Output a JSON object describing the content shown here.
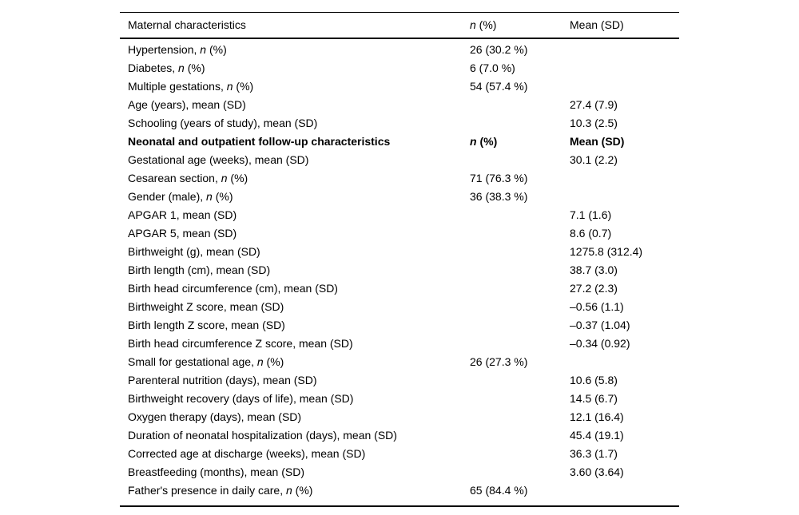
{
  "page": {
    "background_color": "#ffffff",
    "text_color": "#000000",
    "rule_color": "#000000"
  },
  "table": {
    "header": {
      "cells": [
        [
          {
            "text": "Maternal characteristics"
          }
        ],
        [
          {
            "text": "n",
            "italic": true
          },
          {
            "text": " (%)"
          }
        ],
        [
          {
            "text": "Mean (SD)"
          }
        ]
      ]
    },
    "rows": [
      {
        "bold": false,
        "cells": [
          [
            {
              "text": "Hypertension, "
            },
            {
              "text": "n",
              "italic": true
            },
            {
              "text": " (%)"
            }
          ],
          [
            {
              "text": "26 (30.2 %)"
            }
          ],
          []
        ]
      },
      {
        "bold": false,
        "cells": [
          [
            {
              "text": "Diabetes, "
            },
            {
              "text": "n",
              "italic": true
            },
            {
              "text": " (%)"
            }
          ],
          [
            {
              "text": "6 (7.0 %)"
            }
          ],
          []
        ]
      },
      {
        "bold": false,
        "cells": [
          [
            {
              "text": "Multiple gestations, "
            },
            {
              "text": "n",
              "italic": true
            },
            {
              "text": " (%)"
            }
          ],
          [
            {
              "text": "54 (57.4 %)"
            }
          ],
          []
        ]
      },
      {
        "bold": false,
        "cells": [
          [
            {
              "text": "Age (years), mean (SD)"
            }
          ],
          [],
          [
            {
              "text": "27.4 (7.9)"
            }
          ]
        ]
      },
      {
        "bold": false,
        "cells": [
          [
            {
              "text": "Schooling (years of study), mean (SD)"
            }
          ],
          [],
          [
            {
              "text": "10.3 (2.5)"
            }
          ]
        ]
      },
      {
        "bold": true,
        "cells": [
          [
            {
              "text": "Neonatal and outpatient follow-up characteristics",
              "bold": true
            }
          ],
          [
            {
              "text": "n",
              "italic": true
            },
            {
              "text": " (%"
            },
            {
              "text": ")",
              "bold": true
            }
          ],
          [
            {
              "text": "Mean (SD)",
              "bold": true
            }
          ]
        ]
      },
      {
        "bold": false,
        "cells": [
          [
            {
              "text": "Gestational age (weeks), mean (SD)"
            }
          ],
          [],
          [
            {
              "text": "30.1 (2.2)"
            }
          ]
        ]
      },
      {
        "bold": false,
        "cells": [
          [
            {
              "text": "Cesarean section, "
            },
            {
              "text": "n",
              "italic": true
            },
            {
              "text": " (%)"
            }
          ],
          [
            {
              "text": "71 (76.3 %)"
            }
          ],
          []
        ]
      },
      {
        "bold": false,
        "cells": [
          [
            {
              "text": "Gender (male), "
            },
            {
              "text": "n",
              "italic": true
            },
            {
              "text": " (%)"
            }
          ],
          [
            {
              "text": "36 (38.3 %)"
            }
          ],
          []
        ]
      },
      {
        "bold": false,
        "cells": [
          [
            {
              "text": "APGAR 1, mean (SD)"
            }
          ],
          [],
          [
            {
              "text": "7.1 (1.6)"
            }
          ]
        ]
      },
      {
        "bold": false,
        "cells": [
          [
            {
              "text": "APGAR 5, mean (SD)"
            }
          ],
          [],
          [
            {
              "text": "8.6 (0.7)"
            }
          ]
        ]
      },
      {
        "bold": false,
        "cells": [
          [
            {
              "text": "Birthweight (g), mean (SD)"
            }
          ],
          [],
          [
            {
              "text": "1275.8 (312.4)"
            }
          ]
        ]
      },
      {
        "bold": false,
        "cells": [
          [
            {
              "text": "Birth length (cm), mean (SD)"
            }
          ],
          [],
          [
            {
              "text": "38.7 (3.0)"
            }
          ]
        ]
      },
      {
        "bold": false,
        "cells": [
          [
            {
              "text": "Birth head circumference (cm), mean (SD)"
            }
          ],
          [],
          [
            {
              "text": "27.2 (2.3)"
            }
          ]
        ]
      },
      {
        "bold": false,
        "cells": [
          [
            {
              "text": "Birthweight Z score, mean (SD)"
            }
          ],
          [],
          [
            {
              "text": "–0.56 (1.1)"
            }
          ]
        ]
      },
      {
        "bold": false,
        "cells": [
          [
            {
              "text": "Birth length Z score, mean (SD)"
            }
          ],
          [],
          [
            {
              "text": "–0.37 (1.04)"
            }
          ]
        ]
      },
      {
        "bold": false,
        "cells": [
          [
            {
              "text": "Birth head circumference Z score, mean (SD)"
            }
          ],
          [],
          [
            {
              "text": "–0.34 (0.92)"
            }
          ]
        ]
      },
      {
        "bold": false,
        "cells": [
          [
            {
              "text": "Small for gestational age, "
            },
            {
              "text": "n",
              "italic": true
            },
            {
              "text": " (%)"
            }
          ],
          [
            {
              "text": "26 (27.3 %)"
            }
          ],
          []
        ]
      },
      {
        "bold": false,
        "cells": [
          [
            {
              "text": "Parenteral nutrition (days), mean (SD)"
            }
          ],
          [],
          [
            {
              "text": "10.6 (5.8)"
            }
          ]
        ]
      },
      {
        "bold": false,
        "cells": [
          [
            {
              "text": "Birthweight recovery (days of life), mean (SD)"
            }
          ],
          [],
          [
            {
              "text": "14.5 (6.7)"
            }
          ]
        ]
      },
      {
        "bold": false,
        "cells": [
          [
            {
              "text": "Oxygen therapy (days), mean (SD)"
            }
          ],
          [],
          [
            {
              "text": "12.1 (16.4)"
            }
          ]
        ]
      },
      {
        "bold": false,
        "cells": [
          [
            {
              "text": "Duration of neonatal hospitalization (days), mean (SD)"
            }
          ],
          [],
          [
            {
              "text": "45.4 (19.1)"
            }
          ]
        ]
      },
      {
        "bold": false,
        "cells": [
          [
            {
              "text": "Corrected age at discharge (weeks), mean (SD)"
            }
          ],
          [],
          [
            {
              "text": "36.3 (1.7)"
            }
          ]
        ]
      },
      {
        "bold": false,
        "cells": [
          [
            {
              "text": "Breastfeeding (months), mean (SD)"
            }
          ],
          [],
          [
            {
              "text": "3.60 (3.64)"
            }
          ]
        ]
      },
      {
        "bold": false,
        "cells": [
          [
            {
              "text": "Father's presence in daily care, "
            },
            {
              "text": "n",
              "italic": true
            },
            {
              "text": " (%)"
            }
          ],
          [
            {
              "text": "65 (84.4 %)"
            }
          ],
          []
        ]
      }
    ]
  }
}
